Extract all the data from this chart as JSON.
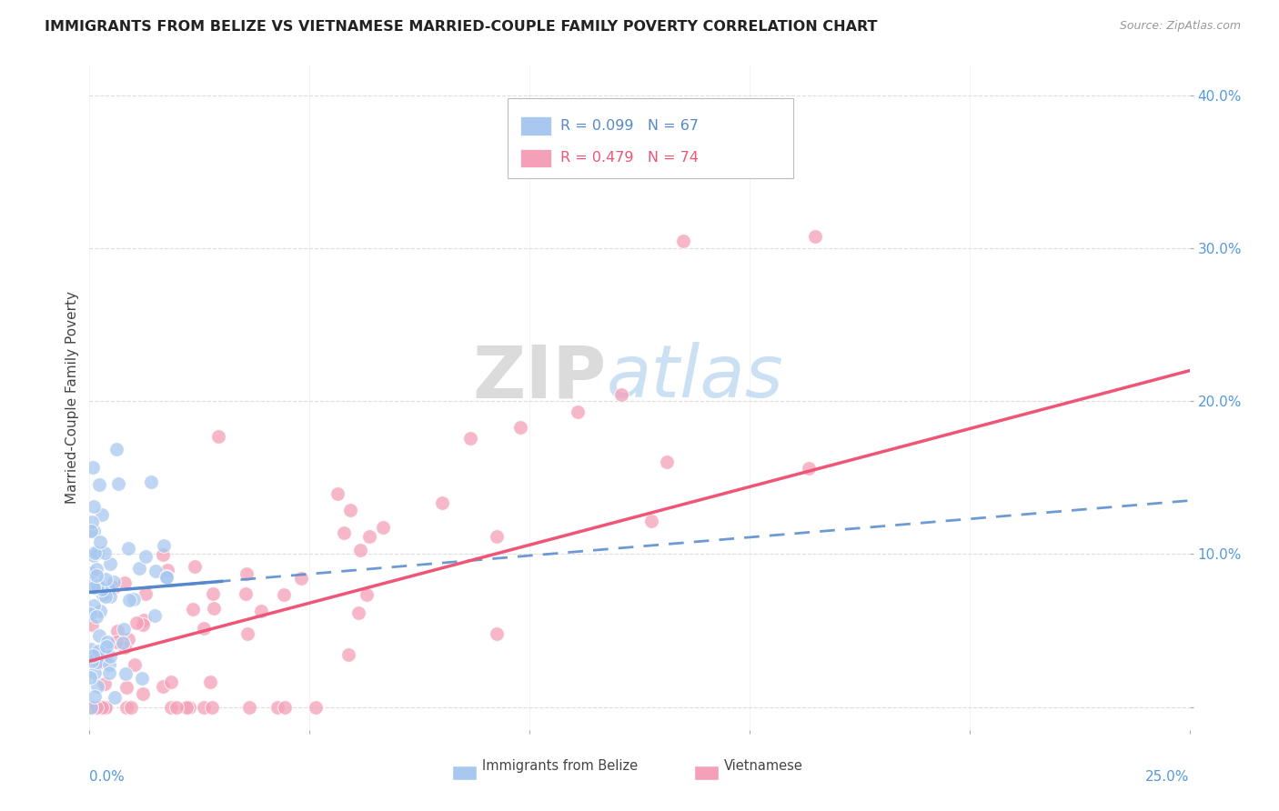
{
  "title": "IMMIGRANTS FROM BELIZE VS VIETNAMESE MARRIED-COUPLE FAMILY POVERTY CORRELATION CHART",
  "source": "Source: ZipAtlas.com",
  "ylabel": "Married-Couple Family Poverty",
  "xlim": [
    0,
    0.25
  ],
  "ylim": [
    -0.015,
    0.42
  ],
  "belize_color": "#A8C8F0",
  "vietnamese_color": "#F4A0B8",
  "belize_line_color": "#5588CC",
  "vietnamese_line_color": "#EE5577",
  "watermark_zip_color": "#DDDDDD",
  "watermark_atlas_color": "#AACCEE",
  "grid_color": "#DDDDDD",
  "ytick_color": "#5599DD",
  "xtick_color": "#5599DD",
  "legend_box_edge": "#BBBBBB",
  "belize_R": 0.099,
  "belize_N": 67,
  "vietnamese_R": 0.479,
  "vietnamese_N": 74,
  "seed_belize": 42,
  "seed_vietnamese": 99
}
